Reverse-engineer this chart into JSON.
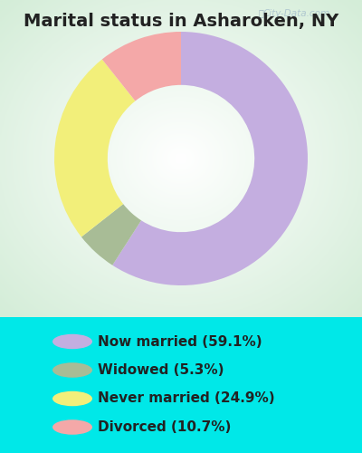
{
  "title": "Marital status in Asharoken, NY",
  "categories": [
    "Now married (59.1%)",
    "Widowed (5.3%)",
    "Never married (24.9%)",
    "Divorced (10.7%)"
  ],
  "values": [
    59.1,
    5.3,
    24.9,
    10.7
  ],
  "colors": [
    "#c4aee0",
    "#a8bc96",
    "#f2ef7a",
    "#f4a8a8"
  ],
  "background_color_outer": "#00e8e8",
  "background_color_chart": "#d4edd8",
  "watermark": "City-Data.com",
  "figsize": [
    4.0,
    5.0
  ],
  "dpi": 100,
  "title_fontsize": 14,
  "legend_fontsize": 11
}
